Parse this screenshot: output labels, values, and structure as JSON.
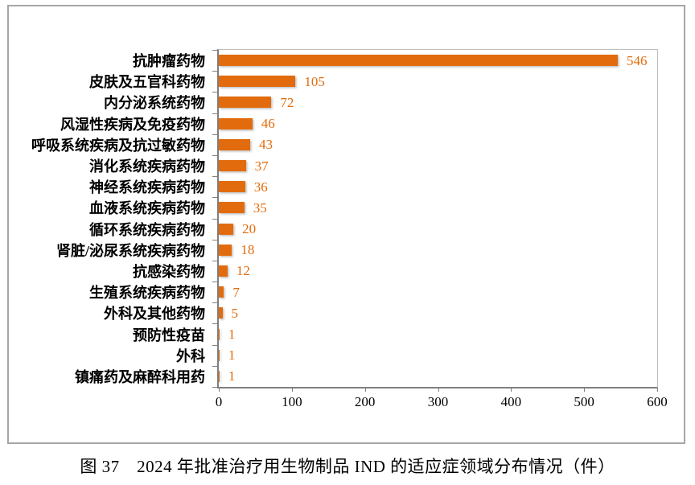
{
  "figure": {
    "caption": "图 37　2024 年批准治疗用生物制品 IND 的适应症领域分布情况（件）"
  },
  "chart_data": {
    "type": "bar",
    "orientation": "horizontal",
    "title": "",
    "xlabel": "",
    "ylabel": "",
    "categories": [
      "抗肿瘤药物",
      "皮肤及五官科药物",
      "内分泌系统药物",
      "风湿性疾病及免疫药物",
      "呼吸系统疾病及抗过敏药物",
      "消化系统疾病药物",
      "神经系统疾病药物",
      "血液系统疾病药物",
      "循环系统疾病药物",
      "肾脏/泌尿系统疾病药物",
      "抗感染药物",
      "生殖系统疾病药物",
      "外科及其他药物",
      "预防性疫苗",
      "外科",
      "镇痛药及麻醉科用药"
    ],
    "values": [
      546,
      105,
      72,
      46,
      43,
      37,
      36,
      35,
      20,
      18,
      12,
      7,
      5,
      1,
      1,
      1
    ],
    "xlim": [
      0,
      600
    ],
    "x_ticks": [
      0,
      100,
      200,
      300,
      400,
      500,
      600
    ],
    "grid": false,
    "legend": false,
    "bar_color": "#e26c0d",
    "value_label_color": "#e26c0d",
    "axis_line_color": "#7f7f7f",
    "plot_border_color": "#bfbfbf",
    "frame_border_color": "#a6a6a6"
  }
}
